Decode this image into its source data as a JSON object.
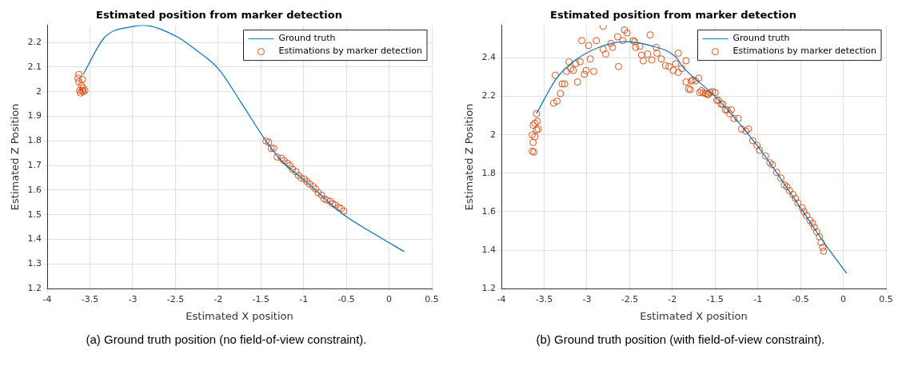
{
  "chart_data": [
    {
      "type": "scatter",
      "title": "Estimated position from marker detection",
      "xlabel": "Estimated X position",
      "ylabel": "Estimated Z Position",
      "xlim": [
        -4,
        0.5
      ],
      "xticks": [
        -4,
        -3.5,
        -3,
        -2.5,
        -2,
        -1.5,
        -1,
        -0.5,
        0,
        0.5
      ],
      "ylim": [
        1.2,
        2.27
      ],
      "yticks": [
        1.2,
        1.3,
        1.4,
        1.5,
        1.6,
        1.7,
        1.8,
        1.9,
        2,
        2.1,
        2.2
      ],
      "grid": true,
      "legend": "top right",
      "annotations": [
        "(a) Ground truth position (no field-of-view constraint)."
      ],
      "series": [
        {
          "name": "Ground truth",
          "type": "line",
          "color": "#0072bd",
          "x": [
            -3.58,
            -3.33,
            -3.0,
            -2.89,
            -2.49,
            -2.26,
            -1.99,
            -1.73,
            -1.46,
            -1.26,
            -0.99,
            -0.53,
            -0.16,
            0.18
          ],
          "values": [
            2.07,
            2.22,
            2.265,
            2.27,
            2.225,
            2.17,
            2.09,
            1.955,
            1.81,
            1.72,
            1.64,
            1.5,
            1.42,
            1.35
          ]
        },
        {
          "name": "Estimations by marker detection",
          "type": "scatter",
          "marker": "circle",
          "color": "#d95319",
          "x": [
            -3.63,
            -3.64,
            -3.63,
            -3.59,
            -3.6,
            -3.58,
            -3.62,
            -3.59,
            -3.56,
            -3.61,
            -3.58,
            -1.44,
            -1.41,
            -1.38,
            -1.35,
            -1.31,
            -1.26,
            -1.23,
            -1.19,
            -1.16,
            -1.13,
            -1.09,
            -1.06,
            -1.03,
            -0.99,
            -0.96,
            -0.93,
            -0.89,
            -0.86,
            -0.83,
            -0.79,
            -0.76,
            -0.73,
            -0.69,
            -0.66,
            -0.63,
            -0.59,
            -0.56,
            -0.53
          ],
          "values": [
            2.07,
            2.055,
            2.04,
            2.05,
            2.025,
            2.015,
            2.005,
            2.005,
            2.005,
            1.995,
            2.0,
            1.8,
            1.795,
            1.77,
            1.77,
            1.735,
            1.73,
            1.72,
            1.71,
            1.7,
            1.685,
            1.675,
            1.66,
            1.65,
            1.645,
            1.635,
            1.625,
            1.615,
            1.605,
            1.59,
            1.58,
            1.565,
            1.56,
            1.555,
            1.545,
            1.54,
            1.53,
            1.525,
            1.515
          ]
        }
      ]
    },
    {
      "type": "scatter",
      "title": "Estimated position from marker detection",
      "xlabel": "Estimated X position",
      "ylabel": "Estimated Z Position",
      "xlim": [
        -4,
        0.5
      ],
      "xticks": [
        -4,
        -3.5,
        -3,
        -2.5,
        -2,
        -1.5,
        -1,
        -0.5,
        0,
        0.5
      ],
      "ylim": [
        1.2,
        2.57
      ],
      "yticks": [
        1.2,
        1.4,
        1.6,
        1.8,
        2,
        2.2,
        2.4
      ],
      "grid": true,
      "legend": "top right",
      "annotations": [
        "(b) Ground truth position (with field-of-view constraint)."
      ],
      "series": [
        {
          "name": "Ground truth",
          "type": "line",
          "color": "#0072bd",
          "x": [
            -3.59,
            -3.36,
            -3.16,
            -2.86,
            -2.56,
            -2.26,
            -1.96,
            -1.88,
            -1.5,
            -1.0,
            -0.5,
            -0.21,
            0.04
          ],
          "values": [
            2.11,
            2.29,
            2.38,
            2.455,
            2.485,
            2.465,
            2.405,
            2.355,
            2.2,
            1.94,
            1.62,
            1.43,
            1.28
          ]
        },
        {
          "name": "Estimations by marker detection",
          "type": "scatter",
          "marker": "circle",
          "color": "#d95319",
          "x": [
            -3.59,
            -3.61,
            -3.58,
            -3.63,
            -3.59,
            -3.57,
            -3.64,
            -3.61,
            -3.63,
            -3.62,
            -3.64,
            -3.39,
            -3.35,
            -3.37,
            -3.31,
            -3.29,
            -3.26,
            -3.24,
            -3.21,
            -3.19,
            -3.16,
            -3.13,
            -3.11,
            -3.08,
            -3.06,
            -3.03,
            -3.01,
            -2.96,
            -2.98,
            -2.92,
            -2.89,
            -2.81,
            -2.81,
            -2.78,
            -2.72,
            -2.7,
            -2.64,
            -2.63,
            -2.58,
            -2.56,
            -2.53,
            -2.46,
            -2.44,
            -2.43,
            -2.38,
            -2.36,
            -2.34,
            -2.29,
            -2.26,
            -2.24,
            -2.19,
            -2.18,
            -2.13,
            -2.08,
            -2.04,
            -1.99,
            -1.96,
            -1.93,
            -1.93,
            -1.89,
            -1.84,
            -1.84,
            -1.81,
            -1.79,
            -1.78,
            -1.76,
            -1.73,
            -1.69,
            -1.68,
            -1.66,
            -1.64,
            -1.61,
            -1.59,
            -1.58,
            -1.56,
            -1.53,
            -1.5,
            -1.48,
            -1.46,
            -1.43,
            -1.41,
            -1.38,
            -1.36,
            -1.33,
            -1.31,
            -1.28,
            -1.23,
            -1.19,
            -1.14,
            -1.11,
            -1.06,
            -1.01,
            -0.98,
            -0.91,
            -0.86,
            -0.83,
            -0.78,
            -0.73,
            -0.69,
            -0.66,
            -0.63,
            -0.59,
            -0.56,
            -0.53,
            -0.48,
            -0.46,
            -0.43,
            -0.39,
            -0.36,
            -0.34,
            -0.31,
            -0.28,
            -0.26,
            -0.24,
            -0.23
          ],
          "values": [
            2.11,
            2.06,
            2.07,
            2.05,
            2.025,
            2.03,
            2.0,
            1.99,
            1.96,
            1.91,
            1.915,
            2.165,
            2.175,
            2.31,
            2.215,
            2.265,
            2.265,
            2.33,
            2.38,
            2.345,
            2.335,
            2.37,
            2.275,
            2.38,
            2.49,
            2.315,
            2.335,
            2.395,
            2.465,
            2.33,
            2.49,
            2.565,
            2.445,
            2.42,
            2.475,
            2.455,
            2.51,
            2.355,
            2.49,
            2.545,
            2.53,
            2.49,
            2.485,
            2.455,
            2.46,
            2.415,
            2.385,
            2.42,
            2.52,
            2.39,
            2.455,
            2.425,
            2.395,
            2.36,
            2.355,
            2.335,
            2.37,
            2.325,
            2.425,
            2.345,
            2.385,
            2.275,
            2.24,
            2.235,
            2.28,
            2.285,
            2.28,
            2.295,
            2.22,
            2.23,
            2.22,
            2.215,
            2.21,
            2.21,
            2.22,
            2.225,
            2.22,
            2.18,
            2.18,
            2.16,
            2.16,
            2.13,
            2.13,
            2.11,
            2.13,
            2.085,
            2.085,
            2.03,
            2.02,
            2.03,
            1.97,
            1.945,
            1.92,
            1.89,
            1.855,
            1.845,
            1.805,
            1.775,
            1.74,
            1.73,
            1.71,
            1.69,
            1.67,
            1.645,
            1.62,
            1.6,
            1.58,
            1.555,
            1.54,
            1.52,
            1.495,
            1.47,
            1.44,
            1.415,
            1.395
          ]
        }
      ]
    }
  ]
}
